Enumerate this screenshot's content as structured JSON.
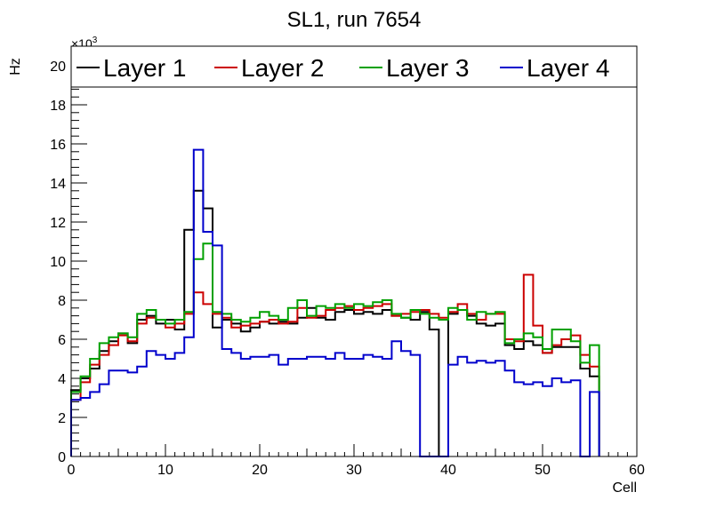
{
  "chart_data": {
    "type": "line",
    "title": "SL1, run 7654",
    "xlabel": "Cell",
    "ylabel": "Hz",
    "y_multiplier_label": "×10",
    "y_multiplier_exponent": "3",
    "xlim": [
      0,
      60
    ],
    "ylim": [
      0,
      21
    ],
    "x_ticks": [
      0,
      10,
      20,
      30,
      40,
      50,
      60
    ],
    "y_ticks": [
      0,
      2,
      4,
      6,
      8,
      10,
      12,
      14,
      16,
      18,
      20
    ],
    "bin_width": 1,
    "legend_position": "top",
    "series": [
      {
        "name": "Layer 1",
        "color": "#000000",
        "values": [
          3.4,
          4.0,
          4.5,
          5.4,
          5.9,
          6.3,
          5.8,
          7.0,
          7.2,
          6.8,
          7.0,
          6.5,
          11.6,
          13.6,
          12.7,
          6.6,
          7.0,
          6.8,
          6.4,
          6.6,
          6.9,
          6.8,
          6.9,
          6.8,
          7.1,
          7.6,
          7.1,
          7.0,
          7.4,
          7.5,
          7.3,
          7.4,
          7.3,
          7.5,
          7.2,
          7.1,
          7.0,
          7.4,
          6.5,
          0,
          7.3,
          7.5,
          7.2,
          6.8,
          6.7,
          6.8,
          5.7,
          5.5,
          5.9,
          5.7,
          5.3,
          5.6,
          5.6,
          5.6,
          4.5,
          4.1
        ]
      },
      {
        "name": "Layer 2",
        "color": "#cc0000",
        "values": [
          2.9,
          3.8,
          4.7,
          5.2,
          5.7,
          6.2,
          5.9,
          6.8,
          7.1,
          7.0,
          6.6,
          6.8,
          7.3,
          8.4,
          7.8,
          7.3,
          7.1,
          6.6,
          6.7,
          6.8,
          6.9,
          7.0,
          6.8,
          6.9,
          7.6,
          7.1,
          7.2,
          7.5,
          7.6,
          7.7,
          7.5,
          7.6,
          7.7,
          7.8,
          7.2,
          7.3,
          7.4,
          7.5,
          7.3,
          7.1,
          7.4,
          7.8,
          7.3,
          7.0,
          7.3,
          7.3,
          6.0,
          5.9,
          9.3,
          6.7,
          5.3,
          5.7,
          6.0,
          6.2,
          5.2,
          4.6
        ]
      },
      {
        "name": "Layer 3",
        "color": "#00a000",
        "values": [
          3.3,
          4.1,
          5.0,
          5.8,
          6.1,
          6.3,
          6.1,
          7.3,
          7.5,
          7.0,
          6.8,
          7.0,
          7.4,
          10.1,
          10.9,
          7.4,
          7.3,
          7.0,
          6.9,
          7.1,
          7.4,
          7.2,
          7.0,
          7.6,
          8.0,
          7.2,
          7.7,
          7.6,
          7.8,
          7.6,
          7.8,
          7.7,
          7.9,
          8.0,
          7.3,
          7.1,
          7.5,
          7.3,
          7.1,
          7.0,
          7.6,
          7.5,
          7.0,
          7.4,
          7.3,
          7.4,
          5.8,
          6.0,
          6.3,
          6.1,
          5.5,
          6.5,
          6.5,
          5.9,
          4.8,
          5.7
        ]
      },
      {
        "name": "Layer 4",
        "color": "#0000cc",
        "values": [
          2.9,
          3.0,
          3.3,
          3.7,
          4.4,
          4.4,
          4.3,
          4.6,
          5.4,
          5.2,
          5.0,
          5.3,
          6.1,
          15.7,
          11.5,
          10.8,
          5.5,
          5.3,
          5.0,
          5.1,
          5.1,
          5.2,
          4.7,
          5.0,
          5.0,
          5.1,
          5.1,
          5.0,
          5.3,
          5.0,
          5.0,
          5.2,
          5.1,
          5.0,
          5.9,
          5.4,
          5.2,
          0,
          0,
          0,
          4.7,
          5.1,
          4.8,
          4.9,
          4.8,
          4.9,
          4.4,
          3.8,
          3.7,
          3.8,
          3.6,
          4.0,
          3.8,
          3.9,
          0,
          3.3
        ]
      }
    ]
  }
}
